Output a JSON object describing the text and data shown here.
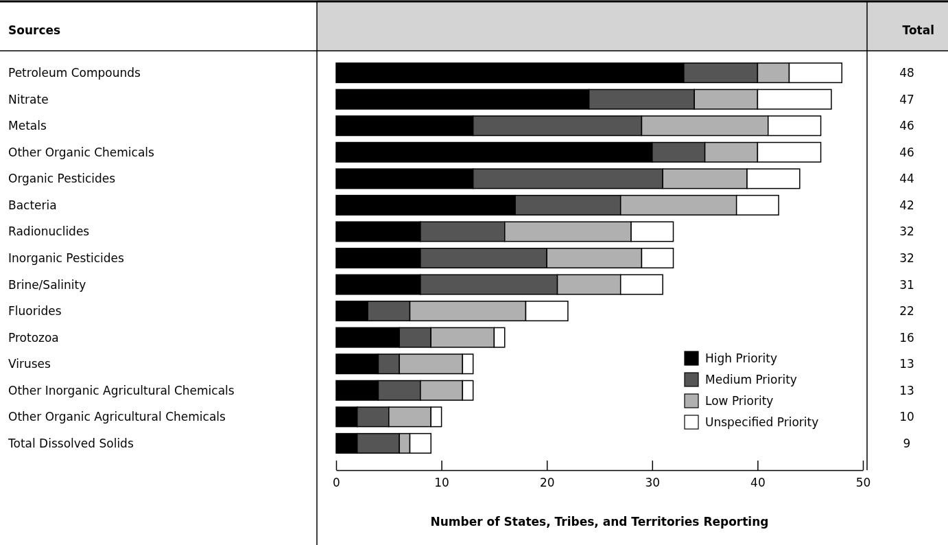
{
  "chart_data": {
    "type": "bar",
    "orientation": "horizontal",
    "stacked": true,
    "ylabel": "Sources",
    "xlabel": "Number of States, Tribes, and Territories Reporting",
    "annotations": [
      "Total",
      "48",
      "47",
      "46",
      "46",
      "44",
      "42",
      "32",
      "32",
      "31",
      "22",
      "16",
      "13",
      "13",
      "10",
      "9"
    ],
    "categories": [
      "Petroleum Compounds",
      "Nitrate",
      "Metals",
      "Other Organic Chemicals",
      "Organic Pesticides",
      "Bacteria",
      "Radionuclides",
      "Inorganic Pesticides",
      "Brine/Salinity",
      "Fluorides",
      "Protozoa",
      "Viruses",
      "Other Inorganic Agricultural Chemicals",
      "Other Organic Agricultural Chemicals",
      "Total Dissolved Solids"
    ],
    "series": [
      {
        "name": "High Priority",
        "color": "#000000",
        "values": [
          33,
          24,
          13,
          30,
          13,
          17,
          8,
          8,
          8,
          3,
          6,
          4,
          4,
          2,
          2
        ]
      },
      {
        "name": "Medium Priority",
        "color": "#555555",
        "values": [
          7,
          10,
          16,
          5,
          18,
          10,
          8,
          12,
          13,
          4,
          3,
          2,
          4,
          3,
          4
        ]
      },
      {
        "name": "Low Priority",
        "color": "#b0b0b0",
        "values": [
          3,
          6,
          12,
          5,
          8,
          11,
          12,
          9,
          6,
          11,
          6,
          6,
          4,
          4,
          1
        ]
      },
      {
        "name": "Unspecified Priority",
        "color": "#ffffff",
        "values": [
          5,
          7,
          5,
          6,
          5,
          4,
          4,
          3,
          4,
          4,
          1,
          1,
          1,
          1,
          2
        ]
      }
    ],
    "xlim": [
      0,
      50
    ],
    "xticks": [
      0,
      10,
      20,
      30,
      40,
      50
    ],
    "grid": false,
    "legend": "bottom right"
  }
}
